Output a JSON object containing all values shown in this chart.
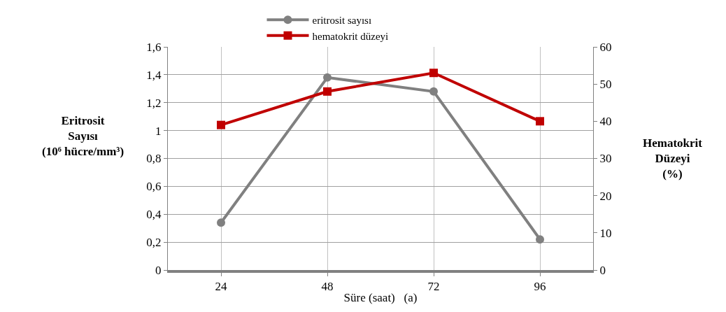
{
  "chart_data": {
    "type": "line",
    "xlabel": "Süre (saat)   (a)",
    "ylabel": "Eritrosit\nSayısı\n(10⁶ hücre/mm³)",
    "y2label": "Hematokrit\nDüzeyi\n(%)",
    "categories": [
      "24",
      "48",
      "72",
      "96"
    ],
    "series": [
      {
        "name": "eritrosit sayısı",
        "color": "#808080",
        "marker": "circle",
        "values": [
          0.34,
          1.38,
          1.28,
          0.22
        ]
      },
      {
        "name": "hematokrit düzeyi",
        "color": "#c00000",
        "marker": "square",
        "axis": "y2",
        "values": [
          39,
          48,
          53,
          40
        ]
      }
    ],
    "ylim": [
      0,
      1.6
    ],
    "yticks": [
      {
        "value": 0,
        "label": "0"
      },
      {
        "value": 0.2,
        "label": "0,2"
      },
      {
        "value": 0.4,
        "label": "0,4"
      },
      {
        "value": 0.6,
        "label": "0,6"
      },
      {
        "value": 0.8,
        "label": "0,8"
      },
      {
        "value": 1,
        "label": "1"
      },
      {
        "value": 1.2,
        "label": "1,2"
      },
      {
        "value": 1.4,
        "label": "1,4"
      },
      {
        "value": 1.6,
        "label": "1,6"
      }
    ],
    "y2lim": [
      0,
      60
    ],
    "y2ticks": [
      0,
      10,
      20,
      30,
      40,
      50,
      60
    ],
    "grid": true,
    "legend": "top",
    "line_style": "solid"
  }
}
